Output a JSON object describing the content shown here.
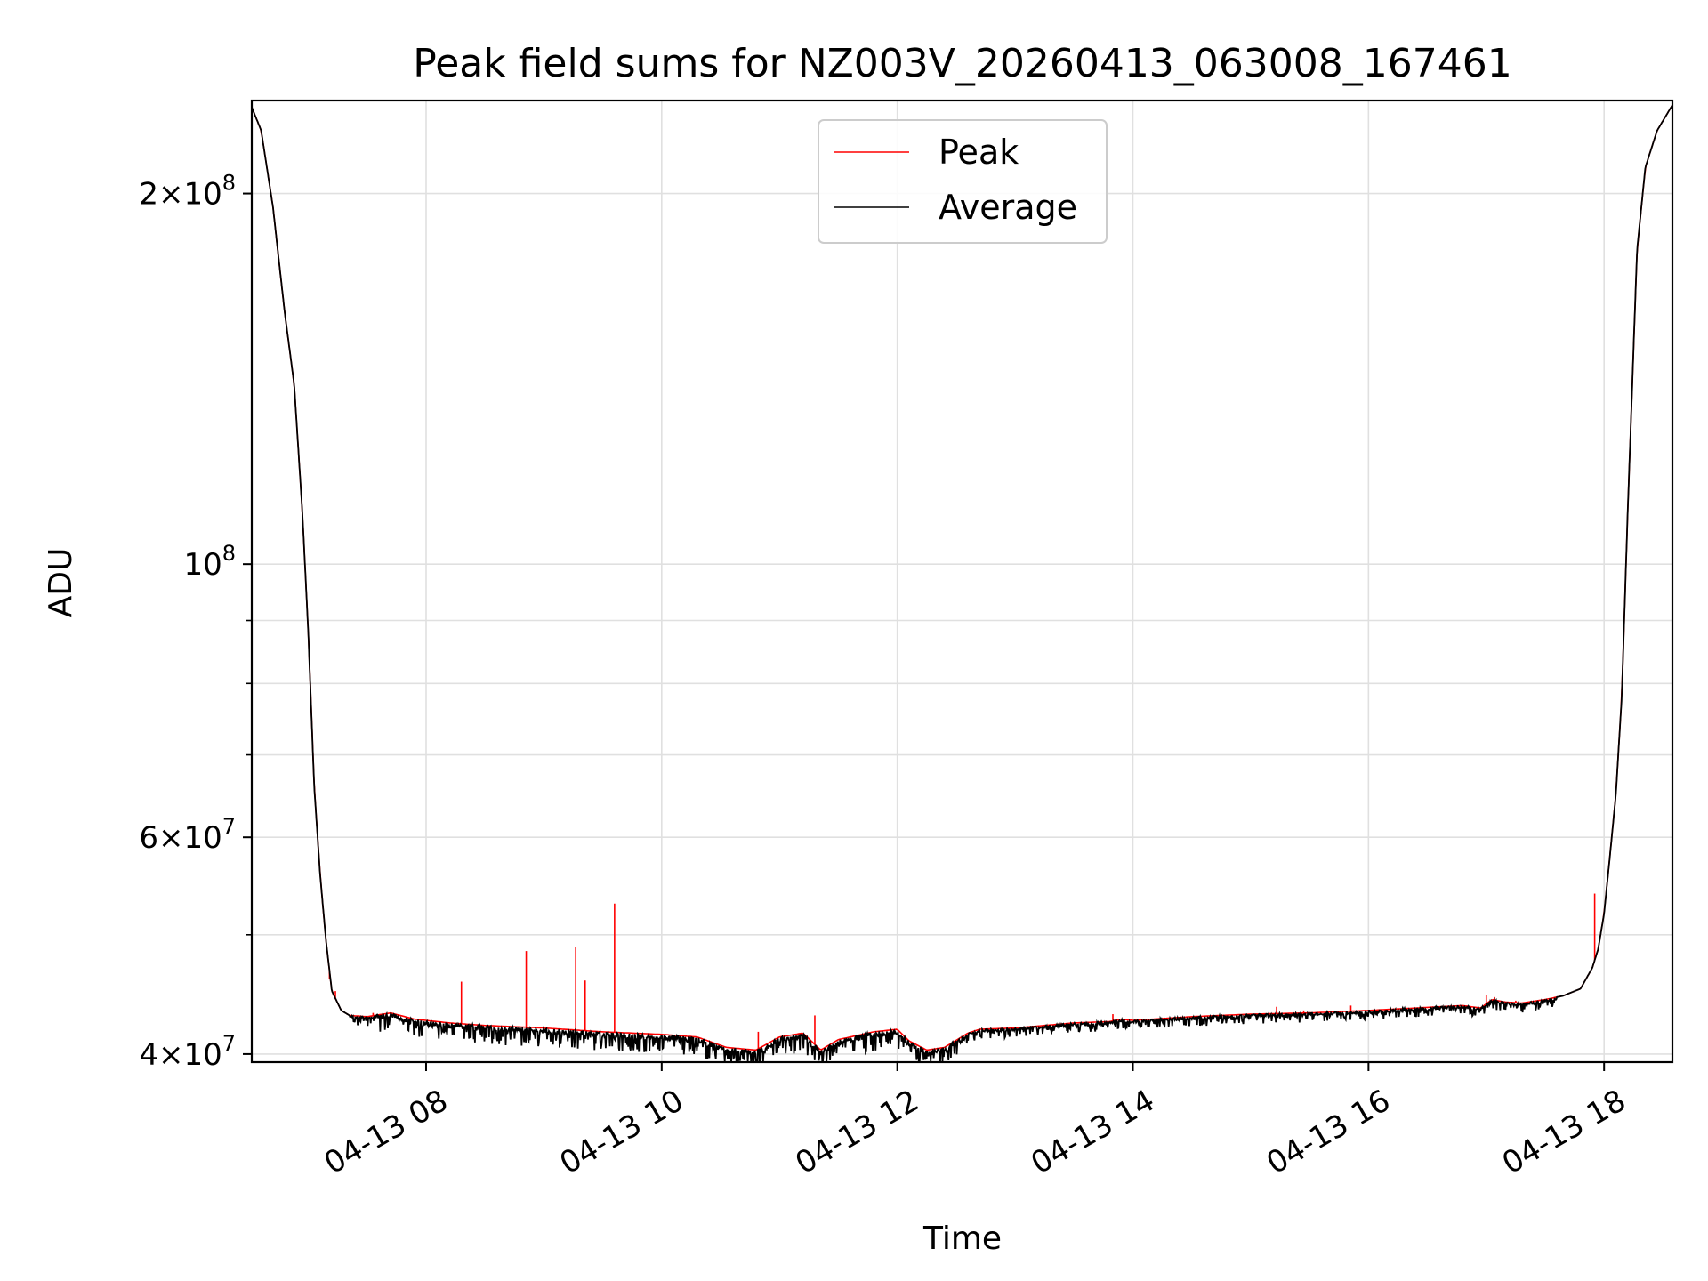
{
  "chart_data": {
    "type": "line",
    "title": "Peak field sums for NZ003V_20260413_063008_167461",
    "xlabel": "Time",
    "ylabel": "ADU",
    "yscale": "log",
    "grid": true,
    "legend_position": "upper-center",
    "x_unit": "hours (time of day, 2026-04-13)",
    "xlim": [
      6.52,
      18.58
    ],
    "ylim": [
      39400000,
      238000000
    ],
    "x_ticks": [
      {
        "value": 8,
        "label": "04-13 08"
      },
      {
        "value": 10,
        "label": "04-13 10"
      },
      {
        "value": 12,
        "label": "04-13 12"
      },
      {
        "value": 14,
        "label": "04-13 14"
      },
      {
        "value": 16,
        "label": "04-13 16"
      },
      {
        "value": 18,
        "label": "04-13 18"
      }
    ],
    "y_major_ticks": [
      {
        "value": 40000000,
        "mantissa": "4",
        "exp": "7"
      },
      {
        "value": 60000000,
        "mantissa": "6",
        "exp": "7"
      },
      {
        "value": 100000000,
        "mantissa": "",
        "exp": "8"
      },
      {
        "value": 200000000,
        "mantissa": "2",
        "exp": "8"
      }
    ],
    "y_minor_ticks": [
      50000000,
      70000000,
      80000000,
      90000000
    ],
    "series": [
      {
        "name": "Peak",
        "color": "#ff0000",
        "baseline_note": "Peak follows Average closely; isolated spikes listed",
        "spikes": [
          {
            "x": 7.18,
            "y": 46000000
          },
          {
            "x": 7.23,
            "y": 45000000
          },
          {
            "x": 7.55,
            "y": 43200000
          },
          {
            "x": 8.3,
            "y": 45800000
          },
          {
            "x": 8.85,
            "y": 48500000
          },
          {
            "x": 9.27,
            "y": 48900000
          },
          {
            "x": 9.35,
            "y": 45900000
          },
          {
            "x": 9.6,
            "y": 53000000
          },
          {
            "x": 10.82,
            "y": 41700000
          },
          {
            "x": 11.3,
            "y": 43000000
          },
          {
            "x": 13.83,
            "y": 43100000
          },
          {
            "x": 15.22,
            "y": 43700000
          },
          {
            "x": 15.45,
            "y": 43400000
          },
          {
            "x": 15.85,
            "y": 43800000
          },
          {
            "x": 16.68,
            "y": 43800000
          },
          {
            "x": 17.0,
            "y": 44700000
          },
          {
            "x": 17.07,
            "y": 44500000
          },
          {
            "x": 17.25,
            "y": 44200000
          },
          {
            "x": 17.92,
            "y": 54000000
          }
        ]
      },
      {
        "name": "Average",
        "color": "#000000",
        "x": [
          6.52,
          6.6,
          6.7,
          6.8,
          6.88,
          6.95,
          7.0,
          7.05,
          7.1,
          7.15,
          7.2,
          7.28,
          7.35,
          7.5,
          7.7,
          7.9,
          8.2,
          8.5,
          9.0,
          9.5,
          10.0,
          10.3,
          10.55,
          10.8,
          11.0,
          11.2,
          11.35,
          11.5,
          11.8,
          12.0,
          12.1,
          12.25,
          12.4,
          12.6,
          12.7,
          13.0,
          13.5,
          13.8,
          13.9,
          14.0,
          14.5,
          15.0,
          15.5,
          16.0,
          16.4,
          16.8,
          16.95,
          17.05,
          17.15,
          17.3,
          17.5,
          17.65,
          17.8,
          17.9,
          17.95,
          18.0,
          18.05,
          18.1,
          18.15,
          18.2,
          18.28,
          18.35,
          18.45,
          18.58
        ],
        "y": [
          235000000,
          225000000,
          195000000,
          160000000,
          140000000,
          110000000,
          88000000,
          66000000,
          56000000,
          49500000,
          45000000,
          43400000,
          43000000,
          42900000,
          43200000,
          42700000,
          42400000,
          42200000,
          42000000,
          41700000,
          41500000,
          41300000,
          40500000,
          40300000,
          41300000,
          41600000,
          40300000,
          41100000,
          41700000,
          41900000,
          41000000,
          40300000,
          40500000,
          41600000,
          41900000,
          42000000,
          42400000,
          42500000,
          42700000,
          42600000,
          42900000,
          43100000,
          43200000,
          43400000,
          43600000,
          43800000,
          43600000,
          44300000,
          44100000,
          44000000,
          44300000,
          44600000,
          45200000,
          47000000,
          48700000,
          52000000,
          58000000,
          65000000,
          78000000,
          110000000,
          180000000,
          210000000,
          225000000,
          236000000
        ]
      }
    ]
  }
}
